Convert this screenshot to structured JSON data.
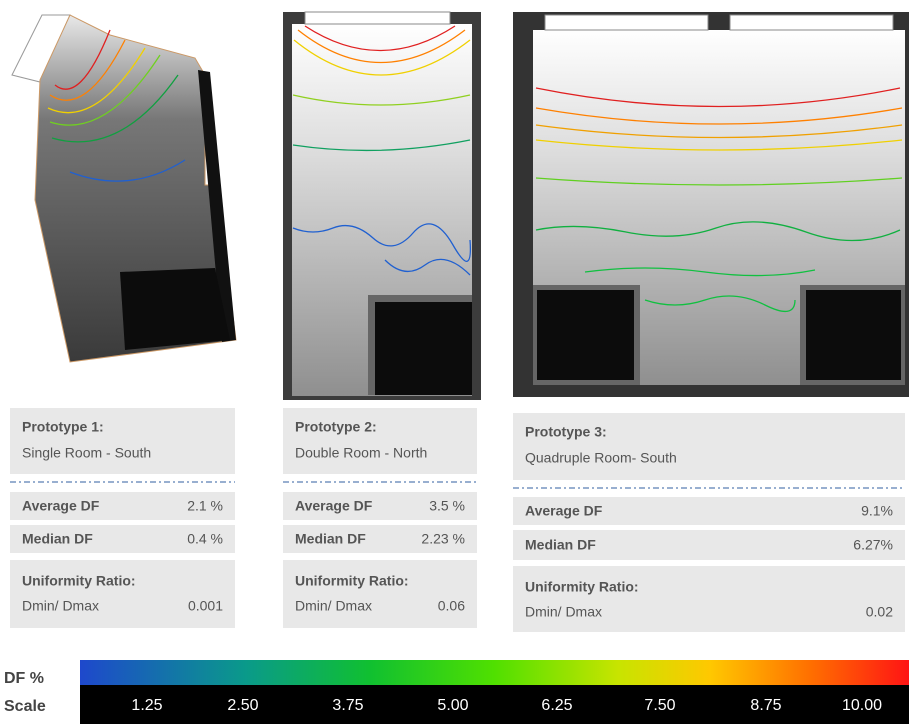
{
  "prototypes": [
    {
      "title": "Prototype 1:",
      "room": "Single Room - South",
      "average_label": "Average DF",
      "average": "2.1 %",
      "median_label": "Median DF",
      "median": "0.4 %",
      "uniformity_label": "Uniformity Ratio:",
      "ratio_label": "Dmin/ Dmax",
      "ratio": "0.001"
    },
    {
      "title": "Prototype 2:",
      "room": "Double Room - North",
      "average_label": "Average DF",
      "average": "3.5 %",
      "median_label": "Median DF",
      "median": "2.23 %",
      "uniformity_label": "Uniformity Ratio:",
      "ratio_label": "Dmin/ Dmax",
      "ratio": "0.06"
    },
    {
      "title": "Prototype 3:",
      "room": "Quadruple Room- South",
      "average_label": "Average DF",
      "average": "9.1%",
      "median_label": "Median DF",
      "median": "6.27%",
      "uniformity_label": "Uniformity Ratio:",
      "ratio_label": "Dmin/ Dmax",
      "ratio": "0.02"
    }
  ],
  "scale": {
    "title": "DF %",
    "subtitle": "Scale",
    "labels": [
      "1.25",
      "2.50",
      "3.75",
      "5.00",
      "6.25",
      "7.50",
      "8.75",
      "10.00"
    ]
  }
}
